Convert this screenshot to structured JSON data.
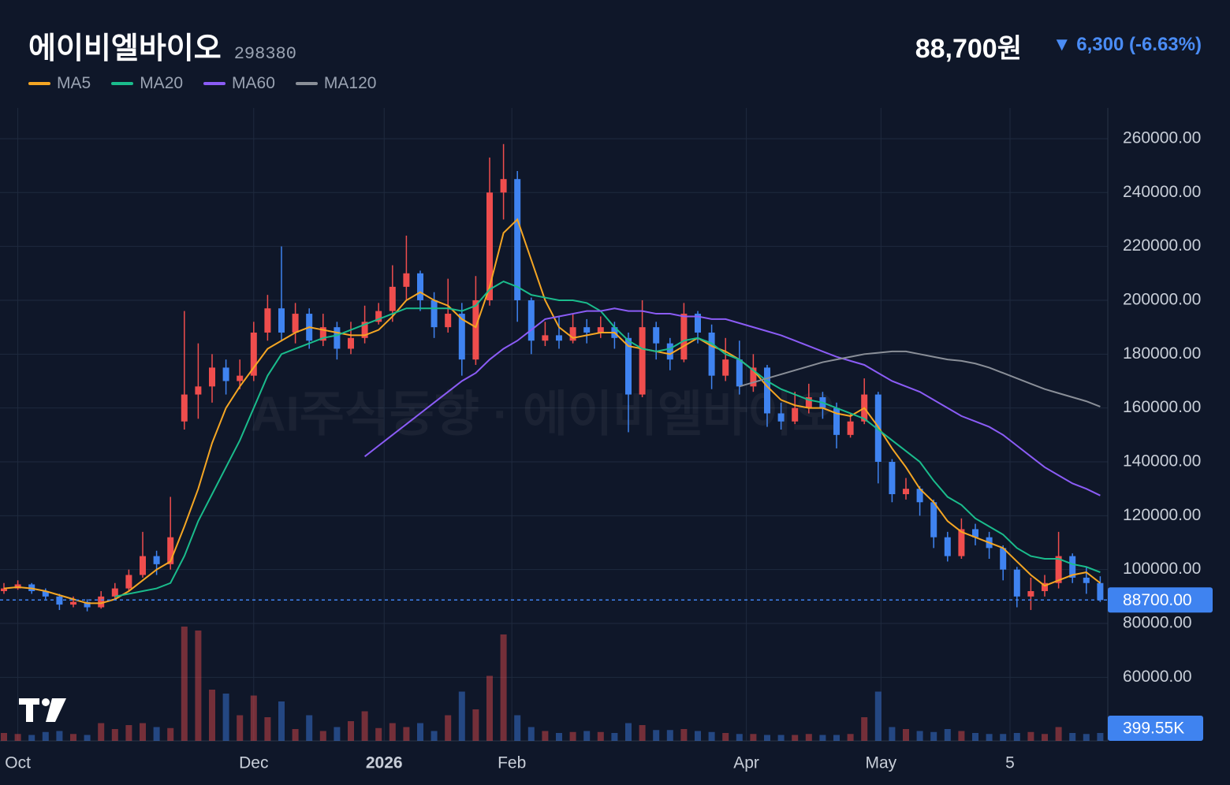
{
  "header": {
    "title": "에이비엘바이오",
    "code": "298380",
    "price": "88,700원",
    "change": "▼ 6,300 (-6.63%)"
  },
  "watermark": "AI주식동향 · 에이비엘바이오",
  "chart_data": {
    "type": "candlestick",
    "up_color": "#ef4d4d",
    "down_color": "#3f83f0",
    "ylim": [
      36400,
      271400
    ],
    "yticks": [
      {
        "value": 60000,
        "label": "60000.00"
      },
      {
        "value": 80000,
        "label": "80000.00"
      },
      {
        "value": 100000,
        "label": "100000.00"
      },
      {
        "value": 120000,
        "label": "120000.00"
      },
      {
        "value": 140000,
        "label": "140000.00"
      },
      {
        "value": 160000,
        "label": "160000.00"
      },
      {
        "value": 180000,
        "label": "180000.00"
      },
      {
        "value": 200000,
        "label": "200000.00"
      },
      {
        "value": 220000,
        "label": "220000.00"
      },
      {
        "value": 240000,
        "label": "240000.00"
      },
      {
        "value": 260000,
        "label": "260000.00"
      }
    ],
    "xticks": [
      {
        "value": 1,
        "label": "Oct"
      },
      {
        "value": 18,
        "label": "Dec"
      },
      {
        "value": 27.4,
        "label": "2026"
      },
      {
        "value": 36.6,
        "label": "Feb"
      },
      {
        "value": 53.5,
        "label": "Apr"
      },
      {
        "value": 63.2,
        "label": "May"
      },
      {
        "value": 72.5,
        "label": "5"
      }
    ],
    "grid": true,
    "last_price": {
      "value": 88700,
      "label": "88700.00"
    },
    "volume_ylim": [
      0,
      6000000
    ],
    "volume_last_label": "399.55K",
    "ohlc": [
      [
        92000,
        95000,
        91000,
        93000
      ],
      [
        93000,
        96000,
        92500,
        94500
      ],
      [
        94500,
        95000,
        91000,
        92000
      ],
      [
        92000,
        93000,
        89000,
        90000
      ],
      [
        90000,
        91000,
        85000,
        87000
      ],
      [
        87000,
        90000,
        86000,
        88000
      ],
      [
        88000,
        89000,
        84500,
        86000
      ],
      [
        86000,
        92000,
        85500,
        90000
      ],
      [
        90000,
        95000,
        89000,
        93000
      ],
      [
        93000,
        100000,
        92000,
        98000
      ],
      [
        98000,
        114000,
        97000,
        105000
      ],
      [
        105000,
        107000,
        98000,
        102000
      ],
      [
        102000,
        127000,
        100000,
        112000
      ],
      [
        155000,
        196000,
        152000,
        165000
      ],
      [
        165000,
        184000,
        156000,
        168000
      ],
      [
        168000,
        180000,
        162000,
        175000
      ],
      [
        175000,
        178000,
        165000,
        170000
      ],
      [
        170000,
        178000,
        167000,
        172000
      ],
      [
        172000,
        192000,
        170000,
        188000
      ],
      [
        188000,
        202000,
        185000,
        197000
      ],
      [
        197000,
        220000,
        185000,
        188000
      ],
      [
        188000,
        199000,
        184000,
        195000
      ],
      [
        195000,
        197000,
        182000,
        185000
      ],
      [
        185000,
        195000,
        183000,
        190000
      ],
      [
        190000,
        192000,
        178000,
        182000
      ],
      [
        182000,
        192000,
        180000,
        186000
      ],
      [
        186000,
        198000,
        184000,
        192000
      ],
      [
        192000,
        199000,
        191000,
        196000
      ],
      [
        196000,
        213000,
        192000,
        205000
      ],
      [
        205000,
        224000,
        200000,
        210000
      ],
      [
        210000,
        211000,
        196000,
        200000
      ],
      [
        200000,
        203000,
        186000,
        190000
      ],
      [
        190000,
        208000,
        188000,
        195000
      ],
      [
        195000,
        199000,
        172000,
        178000
      ],
      [
        178000,
        209000,
        176000,
        200000
      ],
      [
        200000,
        253000,
        198000,
        240000
      ],
      [
        240000,
        258000,
        230000,
        245000
      ],
      [
        245000,
        248000,
        192000,
        200000
      ],
      [
        200000,
        201000,
        180000,
        185000
      ],
      [
        185000,
        192000,
        183000,
        187000
      ],
      [
        187000,
        194000,
        182000,
        185000
      ],
      [
        185000,
        195000,
        184000,
        190000
      ],
      [
        190000,
        193000,
        184000,
        188000
      ],
      [
        188000,
        194000,
        186000,
        190000
      ],
      [
        190000,
        192000,
        182000,
        186000
      ],
      [
        186000,
        188000,
        151000,
        165000
      ],
      [
        165000,
        200000,
        164000,
        190000
      ],
      [
        190000,
        192000,
        178000,
        184000
      ],
      [
        184000,
        186000,
        174000,
        178000
      ],
      [
        178000,
        199000,
        177000,
        195000
      ],
      [
        195000,
        196000,
        184000,
        188000
      ],
      [
        188000,
        191000,
        167000,
        172000
      ],
      [
        172000,
        186000,
        170000,
        178000
      ],
      [
        178000,
        185000,
        165000,
        168000
      ],
      [
        168000,
        180000,
        166000,
        175000
      ],
      [
        175000,
        176000,
        153000,
        158000
      ],
      [
        158000,
        162000,
        152000,
        155000
      ],
      [
        155000,
        166000,
        154000,
        160000
      ],
      [
        160000,
        169000,
        158000,
        164000
      ],
      [
        164000,
        166000,
        156000,
        160000
      ],
      [
        160000,
        162000,
        145000,
        150000
      ],
      [
        150000,
        158000,
        149000,
        155000
      ],
      [
        155000,
        171000,
        154000,
        165000
      ],
      [
        165000,
        166000,
        132000,
        140000
      ],
      [
        140000,
        141000,
        125000,
        128000
      ],
      [
        128000,
        134000,
        126000,
        130000
      ],
      [
        130000,
        131000,
        120000,
        125000
      ],
      [
        125000,
        126000,
        108000,
        112000
      ],
      [
        112000,
        114000,
        103000,
        105000
      ],
      [
        105000,
        119000,
        104000,
        115000
      ],
      [
        115000,
        117000,
        109000,
        112000
      ],
      [
        112000,
        114000,
        104000,
        108000
      ],
      [
        108000,
        109000,
        96000,
        100000
      ],
      [
        100000,
        101000,
        86000,
        90000
      ],
      [
        90000,
        97000,
        85000,
        92000
      ],
      [
        92000,
        98000,
        90000,
        95000
      ],
      [
        95000,
        114000,
        93000,
        105000
      ],
      [
        105000,
        106000,
        95000,
        97000
      ],
      [
        97000,
        101000,
        91000,
        95000
      ],
      [
        95000,
        97500,
        88000,
        88700
      ]
    ],
    "volume": [
      400000,
      350000,
      300000,
      450000,
      500000,
      350000,
      300000,
      900000,
      600000,
      800000,
      900000,
      700000,
      650000,
      5800000,
      5600000,
      2600000,
      2400000,
      1300000,
      2300000,
      1200000,
      2000000,
      600000,
      1300000,
      500000,
      700000,
      1000000,
      1500000,
      650000,
      900000,
      700000,
      900000,
      500000,
      1300000,
      2500000,
      1600000,
      3300000,
      5400000,
      1300000,
      700000,
      500000,
      400000,
      450000,
      500000,
      450000,
      400000,
      900000,
      800000,
      550000,
      550000,
      600000,
      500000,
      450000,
      400000,
      350000,
      350000,
      300000,
      300000,
      300000,
      350000,
      300000,
      300000,
      350000,
      1200000,
      2500000,
      700000,
      600000,
      500000,
      450000,
      600000,
      500000,
      400000,
      350000,
      350000,
      400000,
      450000,
      350000,
      700000,
      400000,
      350000,
      399550
    ],
    "series": [
      {
        "name": "MA5",
        "color": "#f5a623",
        "values": [
          93000,
          93500,
          93000,
          92000,
          90500,
          89000,
          87500,
          87500,
          89000,
          92000,
          96000,
          100000,
          103000,
          116000,
          130000,
          147000,
          160000,
          168000,
          175000,
          182000,
          185000,
          188000,
          190000,
          189000,
          188000,
          187000,
          187000,
          189000,
          194000,
          200000,
          203000,
          200000,
          198000,
          193000,
          190000,
          205000,
          225000,
          230000,
          215000,
          200000,
          190000,
          186000,
          187000,
          188000,
          188000,
          183000,
          182000,
          181000,
          180000,
          183000,
          186000,
          183000,
          181000,
          178000,
          174000,
          168000,
          163000,
          161000,
          160000,
          160000,
          158000,
          157000,
          160000,
          153000,
          145000,
          138000,
          130000,
          125000,
          118000,
          114000,
          112000,
          110000,
          108000,
          103000,
          98000,
          94000,
          96000,
          98000,
          99000,
          95000
        ]
      },
      {
        "name": "MA20",
        "color": "#1abc8c",
        "values": [
          null,
          null,
          null,
          null,
          null,
          null,
          null,
          null,
          90000,
          91000,
          92000,
          93000,
          95000,
          105000,
          118000,
          128000,
          138000,
          148000,
          160000,
          172000,
          180000,
          182000,
          184000,
          186000,
          187000,
          189000,
          191000,
          193000,
          195000,
          197000,
          197000,
          197000,
          197000,
          196000,
          198000,
          204000,
          207000,
          205000,
          202000,
          201000,
          200000,
          200000,
          199000,
          196000,
          190000,
          185000,
          182000,
          181000,
          182000,
          185000,
          186000,
          184000,
          180000,
          178000,
          174000,
          170000,
          167000,
          165000,
          163000,
          162000,
          160000,
          158000,
          156000,
          152000,
          148000,
          144000,
          140000,
          133000,
          127000,
          124000,
          119000,
          116000,
          113000,
          108000,
          105000,
          104000,
          104000,
          102000,
          101000,
          99000
        ]
      },
      {
        "name": "MA60",
        "color": "#8b5cf6",
        "values": [
          null,
          null,
          null,
          null,
          null,
          null,
          null,
          null,
          null,
          null,
          null,
          null,
          null,
          null,
          null,
          null,
          null,
          null,
          null,
          null,
          null,
          null,
          null,
          null,
          null,
          null,
          142000,
          146000,
          150000,
          154000,
          158000,
          162000,
          166000,
          170000,
          173000,
          178000,
          182000,
          185000,
          189000,
          193000,
          194000,
          195000,
          196000,
          196000,
          197000,
          196000,
          196000,
          195000,
          195000,
          194000,
          194000,
          193000,
          193000,
          191500,
          190000,
          188500,
          187000,
          185000,
          183000,
          181000,
          179000,
          177500,
          176000,
          173000,
          170000,
          168000,
          166000,
          163000,
          160000,
          157000,
          155000,
          153000,
          150000,
          146000,
          142000,
          138000,
          135000,
          132000,
          130000,
          127500
        ]
      },
      {
        "name": "MA120",
        "color": "#8a8f98",
        "values": [
          null,
          null,
          null,
          null,
          null,
          null,
          null,
          null,
          null,
          null,
          null,
          null,
          null,
          null,
          null,
          null,
          null,
          null,
          null,
          null,
          null,
          null,
          null,
          null,
          null,
          null,
          null,
          null,
          null,
          null,
          null,
          null,
          null,
          null,
          null,
          null,
          null,
          null,
          null,
          null,
          null,
          null,
          null,
          null,
          null,
          null,
          null,
          null,
          null,
          null,
          null,
          null,
          null,
          168000,
          169500,
          171000,
          172500,
          174000,
          175500,
          177000,
          178000,
          179000,
          180000,
          180500,
          181000,
          181000,
          180000,
          179000,
          178000,
          177500,
          176500,
          175000,
          173000,
          171000,
          169000,
          167000,
          165500,
          164000,
          162500,
          160500
        ]
      }
    ]
  }
}
